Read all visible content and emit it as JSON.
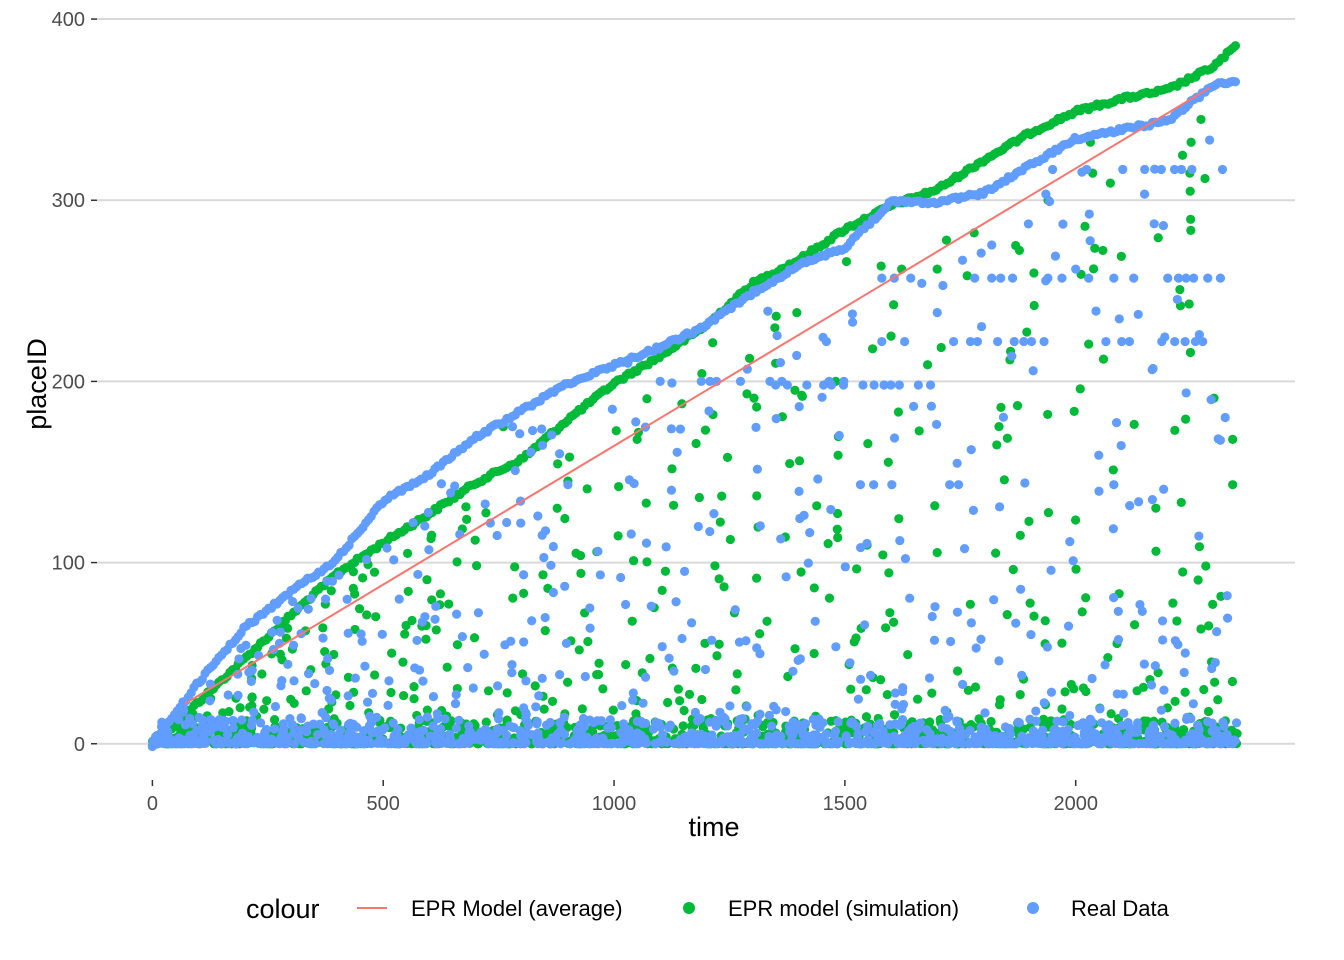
{
  "chart_data": {
    "type": "scatter",
    "title": "",
    "xlabel": "time",
    "ylabel": "placeID",
    "xlim": [
      -120,
      2475
    ],
    "ylim": [
      -20,
      405
    ],
    "x_ticks": [
      0,
      500,
      1000,
      1500,
      2000
    ],
    "y_ticks": [
      0,
      100,
      200,
      300,
      400
    ],
    "x_tick_labels": [
      "0",
      "500",
      "1000",
      "1500",
      "2000"
    ],
    "y_tick_labels": [
      "0",
      "100",
      "200",
      "300",
      "400"
    ],
    "grid": "horizontal major lines",
    "legend": {
      "title": "colour",
      "position": "bottom",
      "entries": [
        {
          "label": "EPR Model (average)",
          "mark": "line",
          "color": "#F8766D"
        },
        {
          "label": "EPR model (simulation)",
          "mark": "point",
          "color": "#00BA38"
        },
        {
          "label": "Real Data",
          "mark": "point",
          "color": "#619CFF"
        }
      ]
    },
    "series": [
      {
        "name": "EPR Model (average)",
        "kind": "line",
        "color": "#F8766D",
        "x": [
          70,
          2290
        ],
        "y": [
          22,
          362
        ]
      },
      {
        "name": "EPR model (simulation)",
        "kind": "scatter",
        "color": "#00BA38",
        "frontier": {
          "x": [
            0,
            50,
            100,
            200,
            300,
            400,
            500,
            600,
            700,
            800,
            900,
            1000,
            1100,
            1200,
            1300,
            1400,
            1500,
            1600,
            1700,
            1800,
            1900,
            2000,
            2100,
            2200,
            2300,
            2350
          ],
          "y": [
            0,
            12,
            24,
            48,
            72,
            95,
            112,
            128,
            145,
            158,
            180,
            200,
            215,
            232,
            255,
            268,
            285,
            298,
            307,
            323,
            338,
            350,
            357,
            362,
            375,
            387
          ]
        },
        "highlights": [
          {
            "x": 1940,
            "y": 300
          },
          {
            "x": 1870,
            "y": 275
          },
          {
            "x": 1780,
            "y": 282
          },
          {
            "x": 1720,
            "y": 278
          },
          {
            "x": 1700,
            "y": 262
          },
          {
            "x": 1600,
            "y": 225
          },
          {
            "x": 1560,
            "y": 218
          },
          {
            "x": 1880,
            "y": 115
          },
          {
            "x": 2340,
            "y": 168
          },
          {
            "x": 2340,
            "y": 143
          },
          {
            "x": 2250,
            "y": 332
          },
          {
            "x": 2280,
            "y": 312
          },
          {
            "x": 2260,
            "y": 368
          },
          {
            "x": 1480,
            "y": 200
          },
          {
            "x": 1350,
            "y": 210
          },
          {
            "x": 1050,
            "y": 168
          },
          {
            "x": 900,
            "y": 145
          },
          {
            "x": 760,
            "y": 175
          }
        ],
        "point_count_shown": 2350
      },
      {
        "name": "Real Data",
        "kind": "scatter",
        "color": "#619CFF",
        "frontier": {
          "x": [
            0,
            50,
            100,
            200,
            300,
            400,
            500,
            600,
            700,
            800,
            900,
            1000,
            1100,
            1200,
            1300,
            1400,
            1500,
            1600,
            1700,
            1800,
            1900,
            2000,
            2100,
            2200,
            2300,
            2350
          ],
          "y": [
            0,
            18,
            35,
            65,
            85,
            103,
            135,
            150,
            170,
            185,
            200,
            210,
            220,
            232,
            250,
            265,
            275,
            300,
            300,
            305,
            320,
            335,
            340,
            345,
            365,
            367
          ]
        },
        "bands": [
          {
            "x": [
              1580,
              2340
            ],
            "y": 257
          },
          {
            "x": [
              1950,
              2340
            ],
            "y": 317
          },
          {
            "x": [
              1350,
              1700
            ],
            "y": 198
          },
          {
            "x": [
              1580,
              2300
            ],
            "y": 222
          },
          {
            "x": [
              1500,
              1750
            ],
            "y": 143
          },
          {
            "x": [
              1100,
              1500
            ],
            "y": 200
          },
          {
            "x": [
              2000,
              2100
            ],
            "y": 143
          }
        ],
        "highlights": [
          {
            "x": 2170,
            "y": 287
          },
          {
            "x": 2190,
            "y": 286
          },
          {
            "x": 1700,
            "y": 238
          },
          {
            "x": 1460,
            "y": 222
          },
          {
            "x": 2000,
            "y": 262
          },
          {
            "x": 1030,
            "y": 210
          },
          {
            "x": 900,
            "y": 143
          },
          {
            "x": 780,
            "y": 175
          }
        ],
        "point_count_shown": 2350
      }
    ]
  }
}
